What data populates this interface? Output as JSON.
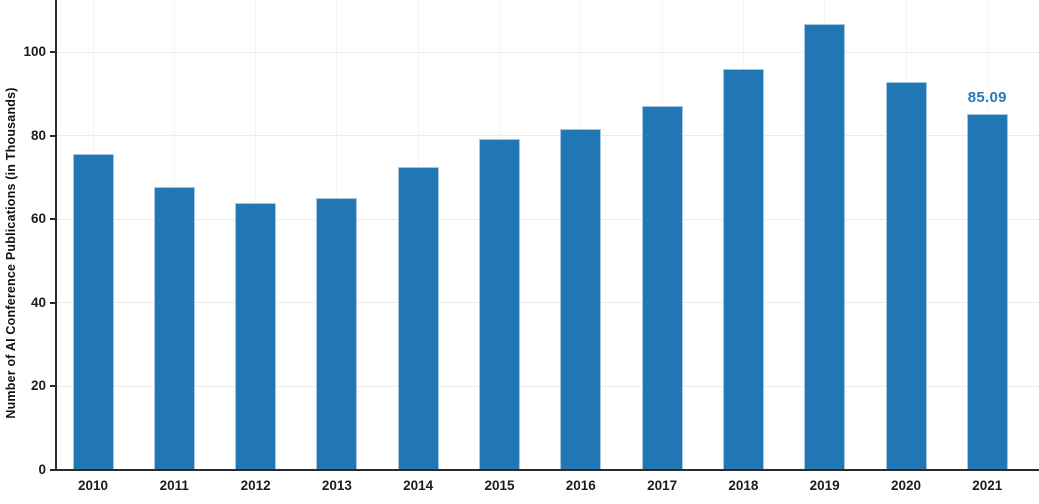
{
  "chart_data": {
    "type": "bar",
    "title": "",
    "categories": [
      "2010",
      "2011",
      "2012",
      "2013",
      "2014",
      "2015",
      "2016",
      "2017",
      "2018",
      "2019",
      "2020",
      "2021"
    ],
    "values": [
      75.5,
      67.6,
      63.8,
      65.0,
      72.5,
      79.2,
      81.5,
      87.0,
      96.0,
      106.8,
      92.8,
      85.09
    ],
    "xlabel": "",
    "ylabel": "Number of AI Conference Publications (in Thousands)",
    "ylim": [
      0,
      112.4
    ],
    "yticks": [
      0,
      20,
      40,
      60,
      80,
      100
    ],
    "grid": true,
    "legend": "none",
    "bar_color": "#2077b4",
    "bar_edge_color": "#a6c6e1",
    "axis_text_color": "#1c1c1c",
    "annotation": {
      "text": "85.09",
      "category": "2021",
      "color": "#2878b8"
    }
  }
}
